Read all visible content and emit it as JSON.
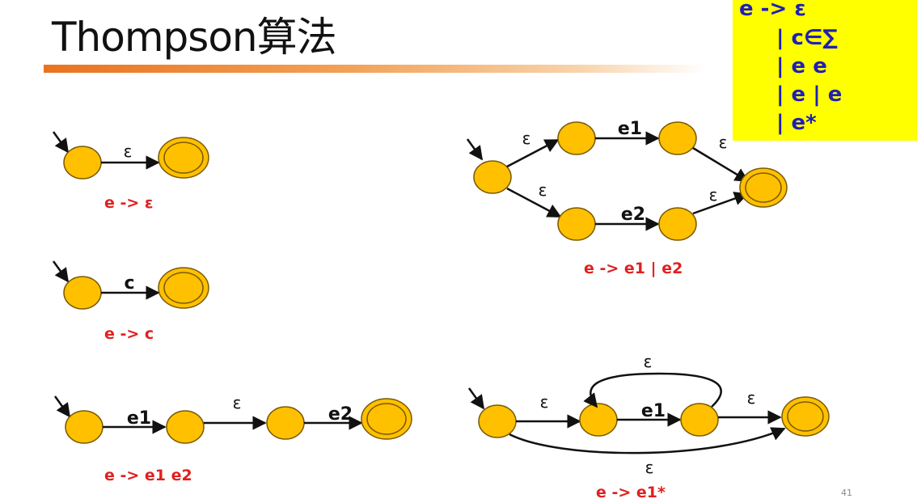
{
  "slide": {
    "title": "Thompson算法",
    "page_number": "41"
  },
  "grammar_box": {
    "lines": [
      "e -> ε",
      "| c∈∑",
      "| e e",
      "| e | e",
      "| e*"
    ]
  },
  "diagrams": {
    "epsilon": {
      "edge": "ε",
      "caption": "e -> ε"
    },
    "char": {
      "edge": "c",
      "caption": "e -> c"
    },
    "concat": {
      "edge1": "e1",
      "edge_eps": "ε",
      "edge2": "e2",
      "caption": "e -> e1 e2"
    },
    "union": {
      "eps_top_in": "ε",
      "edge_top": "e1",
      "eps_top_out": "ε",
      "eps_bot_in": "ε",
      "edge_bot": "e2",
      "eps_bot_out": "ε",
      "caption": "e -> e1 | e2"
    },
    "star": {
      "eps_loop": "ε",
      "eps_in": "ε",
      "edge": "e1",
      "eps_out": "ε",
      "eps_skip": "ε",
      "caption": "e -> e1*"
    }
  },
  "colors": {
    "state_fill": "#ffc000",
    "state_stroke": "#7a5a00",
    "caption": "#e02020",
    "grammar_text": "#1f1fb8",
    "grammar_bg": "#ffff00",
    "title_bar": "#e9731f"
  }
}
